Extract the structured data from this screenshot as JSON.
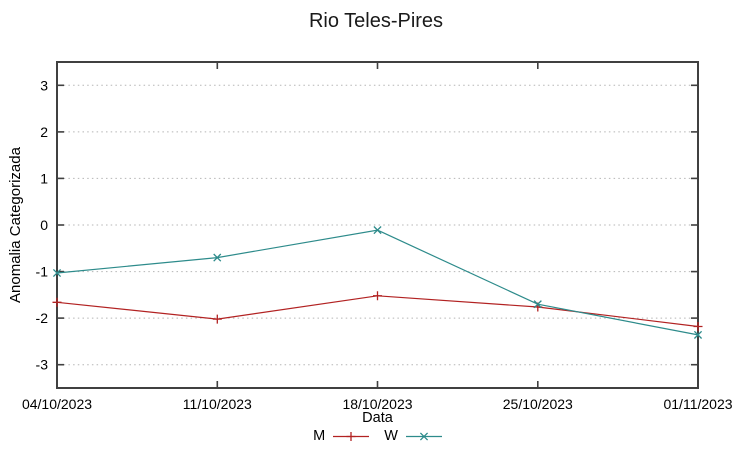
{
  "chart_data": {
    "type": "line",
    "title": "Rio Teles-Pires",
    "xlabel": "Data",
    "ylabel": "Anomalia Categorizada",
    "categories": [
      "04/10/2023",
      "11/10/2023",
      "18/10/2023",
      "25/10/2023",
      "01/11/2023"
    ],
    "series": [
      {
        "name": "M",
        "color": "#b22222",
        "marker": "plus",
        "values": [
          -1.66,
          -2.02,
          -1.52,
          -1.76,
          -2.18
        ]
      },
      {
        "name": "W",
        "color": "#2d8b8b",
        "marker": "cross",
        "values": [
          -1.03,
          -0.7,
          -0.11,
          -1.7,
          -2.36
        ]
      }
    ],
    "ylim": [
      -3.5,
      3.5
    ],
    "yticks": [
      3,
      2,
      1,
      0,
      -1,
      -2,
      -3
    ],
    "grid": true,
    "grid_style": "dotted",
    "legend_position": "below-x-axis-label",
    "axis_color": "#404040",
    "grid_color": "#b5b5b5",
    "text_color": "#000000",
    "background": "#ffffff"
  }
}
